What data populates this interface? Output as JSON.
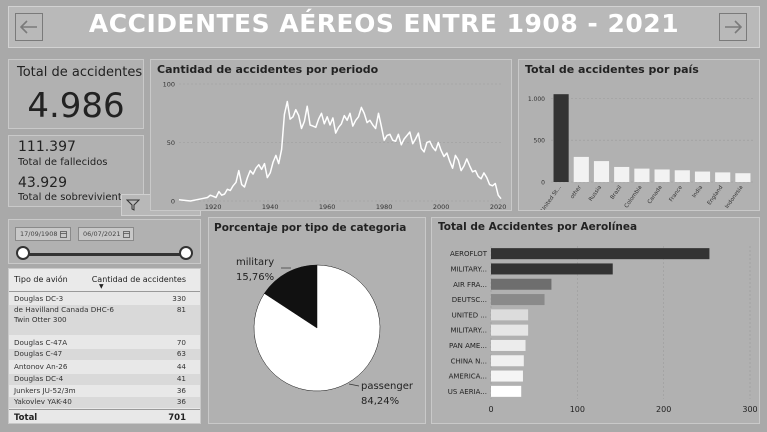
{
  "header": {
    "title": "ACCIDENTES AÉREOS ENTRE 1908 - 2021",
    "back_icon": "arrow-left-icon",
    "next_icon": "arrow-right-icon"
  },
  "kpi_total": {
    "label": "Total de accidentes",
    "value": "4.986"
  },
  "kpi_fatalities": {
    "value": "111.397",
    "label": "Total de fallecidos"
  },
  "kpi_survivors": {
    "value": "43.929",
    "label": "Total de sobrevivientes"
  },
  "toolbar": {
    "filter_icon": "filter-icon",
    "focus_icon": "expand-icon",
    "more_label": "···"
  },
  "date_filter": {
    "start": "17/09/1908",
    "end": "06/07/2021"
  },
  "table": {
    "col1": "Tipo de avión",
    "col2": "Cantidad de accidentes",
    "rows": [
      {
        "name": "Douglas DC-3",
        "value": "330"
      },
      {
        "name": "de Havilland Canada DHC-6 Twin Otter 300",
        "value": "81"
      },
      {
        "name": "Douglas C-47A",
        "value": "70"
      },
      {
        "name": "Douglas C-47",
        "value": "63"
      },
      {
        "name": "Antonov An-26",
        "value": "44"
      },
      {
        "name": "Douglas DC-4",
        "value": "41"
      },
      {
        "name": "Junkers JU-52/3m",
        "value": "36"
      },
      {
        "name": "Yakovlev YAK-40",
        "value": "36"
      }
    ],
    "total_label": "Total",
    "total_value": "701"
  },
  "chart_data": [
    {
      "type": "line",
      "title": "Cantidad de accidentes por periodo",
      "xlim": [
        1908,
        2021
      ],
      "ylim": [
        0,
        100
      ],
      "x_ticks": [
        1920,
        1940,
        1960,
        1980,
        2000,
        2020
      ],
      "y_ticks": [
        0,
        50,
        100
      ],
      "x": [
        1908,
        1912,
        1916,
        1918,
        1919,
        1920,
        1921,
        1922,
        1923,
        1924,
        1925,
        1926,
        1927,
        1928,
        1929,
        1930,
        1931,
        1932,
        1933,
        1934,
        1935,
        1936,
        1937,
        1938,
        1939,
        1940,
        1941,
        1942,
        1943,
        1944,
        1945,
        1946,
        1947,
        1948,
        1949,
        1950,
        1951,
        1952,
        1953,
        1954,
        1955,
        1956,
        1957,
        1958,
        1959,
        1960,
        1961,
        1962,
        1963,
        1964,
        1965,
        1966,
        1967,
        1968,
        1969,
        1970,
        1971,
        1972,
        1973,
        1974,
        1975,
        1976,
        1977,
        1978,
        1979,
        1980,
        1981,
        1982,
        1983,
        1984,
        1985,
        1986,
        1987,
        1988,
        1989,
        1990,
        1991,
        1992,
        1993,
        1994,
        1995,
        1996,
        1997,
        1998,
        1999,
        2000,
        2001,
        2002,
        2003,
        2004,
        2005,
        2006,
        2007,
        2008,
        2009,
        2010,
        2011,
        2012,
        2013,
        2014,
        2015,
        2016,
        2017,
        2018,
        2019,
        2020,
        2021
      ],
      "series": [
        {
          "values": [
            1,
            0,
            2,
            3,
            5,
            4,
            3,
            8,
            5,
            6,
            10,
            9,
            13,
            16,
            26,
            14,
            12,
            20,
            26,
            23,
            28,
            31,
            27,
            32,
            20,
            24,
            33,
            39,
            32,
            44,
            74,
            85,
            70,
            72,
            78,
            73,
            62,
            68,
            81,
            65,
            64,
            63,
            70,
            75,
            66,
            72,
            65,
            71,
            58,
            63,
            66,
            73,
            69,
            75,
            64,
            69,
            72,
            80,
            75,
            67,
            69,
            65,
            62,
            75,
            64,
            52,
            56,
            57,
            52,
            51,
            57,
            48,
            53,
            56,
            59,
            49,
            53,
            58,
            45,
            42,
            50,
            51,
            46,
            43,
            50,
            43,
            38,
            41,
            34,
            28,
            39,
            35,
            26,
            30,
            36,
            30,
            25,
            26,
            21,
            19,
            24,
            20,
            14,
            13,
            15,
            5,
            2
          ]
        }
      ]
    },
    {
      "type": "bar",
      "title": "Total de accidentes por país",
      "categories": [
        "United St...",
        "other",
        "Russia",
        "Brazil",
        "Colombia",
        "Canada",
        "France",
        "India",
        "England",
        "Indonesia"
      ],
      "values": [
        1050,
        300,
        250,
        180,
        160,
        150,
        140,
        125,
        115,
        105
      ],
      "ylim": [
        0,
        1100
      ],
      "y_ticks": [
        0,
        500,
        1000
      ],
      "y_tick_labels": [
        "0",
        "500",
        "1.000"
      ]
    },
    {
      "type": "pie",
      "title": "Porcentaje por tipo de categoria",
      "labels": [
        "military",
        "passenger"
      ],
      "values": [
        15.76,
        84.24
      ],
      "display_labels": [
        "15,76%",
        "84,24%"
      ]
    },
    {
      "type": "bar",
      "title": "Total de Accidentes por Aerolínea",
      "categories": [
        "AEROFLOT",
        "MILITARY...",
        "AIR FRA...",
        "DEUTSC...",
        "UNITED ...",
        "MILITARY...",
        "PAN AME...",
        "CHINA N...",
        "AMERICA...",
        "US AERIA..."
      ],
      "values": [
        253,
        141,
        70,
        62,
        43,
        43,
        40,
        38,
        37,
        35
      ],
      "xlim": [
        0,
        300
      ],
      "x_ticks": [
        0,
        100,
        200,
        300
      ]
    }
  ],
  "colors": {
    "background": "#a9a9a9",
    "card": "#b1b1b1",
    "dark_bar": "#333333",
    "light_bar": "#ffffff"
  }
}
